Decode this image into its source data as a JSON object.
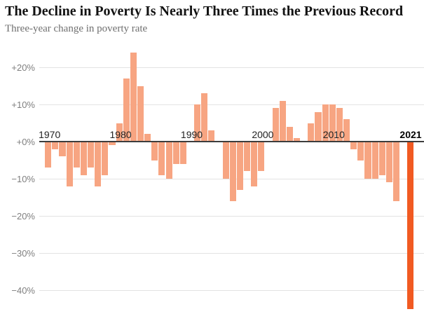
{
  "header": {
    "title": "The Decline in Poverty Is Nearly Three Times the Previous Record",
    "subtitle": "Three-year change in poverty rate"
  },
  "chart_data": {
    "type": "bar",
    "title": "The Decline in Poverty Is Nearly Three Times the Previous Record",
    "subtitle": "Three-year change in poverty rate",
    "xlabel": "",
    "ylabel": "Three-year change in poverty rate (%)",
    "x": [
      1970,
      1971,
      1972,
      1973,
      1974,
      1975,
      1976,
      1977,
      1978,
      1979,
      1980,
      1981,
      1982,
      1983,
      1984,
      1985,
      1986,
      1987,
      1988,
      1989,
      1990,
      1991,
      1992,
      1993,
      1994,
      1995,
      1996,
      1997,
      1998,
      1999,
      2000,
      2001,
      2002,
      2003,
      2004,
      2005,
      2006,
      2007,
      2008,
      2009,
      2010,
      2011,
      2012,
      2013,
      2014,
      2015,
      2016,
      2017,
      2018,
      2019,
      2020,
      2021
    ],
    "values": [
      -7,
      -2,
      -4,
      -12,
      -7,
      -9,
      -7,
      -12,
      -9,
      -1,
      5,
      17,
      24,
      15,
      2,
      -5,
      -9,
      -10,
      -6,
      -6,
      0,
      10,
      13,
      3,
      0,
      -10,
      -16,
      -13,
      -8,
      -12,
      -8,
      0,
      9,
      11,
      4,
      1,
      0,
      5,
      8,
      10,
      10,
      9,
      6,
      -2,
      -5,
      -10,
      -10,
      -9,
      -11,
      -16,
      0,
      -45
    ],
    "highlight_year": 2021,
    "y_ticks": [
      {
        "label": "+20%",
        "value": 20
      },
      {
        "label": "+10%",
        "value": 10
      },
      {
        "label": "+0%",
        "value": 0
      },
      {
        "label": "−10%",
        "value": -10
      },
      {
        "label": "−20%",
        "value": -20
      },
      {
        "label": "−30%",
        "value": -30
      },
      {
        "label": "−40%",
        "value": -40
      }
    ],
    "x_ticks": [
      {
        "label": "1970",
        "year": 1970,
        "bold": false
      },
      {
        "label": "1980",
        "year": 1980,
        "bold": false
      },
      {
        "label": "1990",
        "year": 1990,
        "bold": false
      },
      {
        "label": "2000",
        "year": 2000,
        "bold": false
      },
      {
        "label": "2010",
        "year": 2010,
        "bold": false
      },
      {
        "label": "2021",
        "year": 2021,
        "bold": true
      }
    ],
    "ylim": [
      -46,
      27
    ],
    "grid": true,
    "legend": false,
    "colors": {
      "bar": "#F7A582",
      "highlight": "#F15A22",
      "grid": "#E3E3E3",
      "zero_axis": "#3D3D3D",
      "y_tick_text": "#7F7F7F",
      "x_tick_text": "#222222",
      "title_text": "#121212",
      "subtitle_text": "#6F6F6F"
    }
  }
}
